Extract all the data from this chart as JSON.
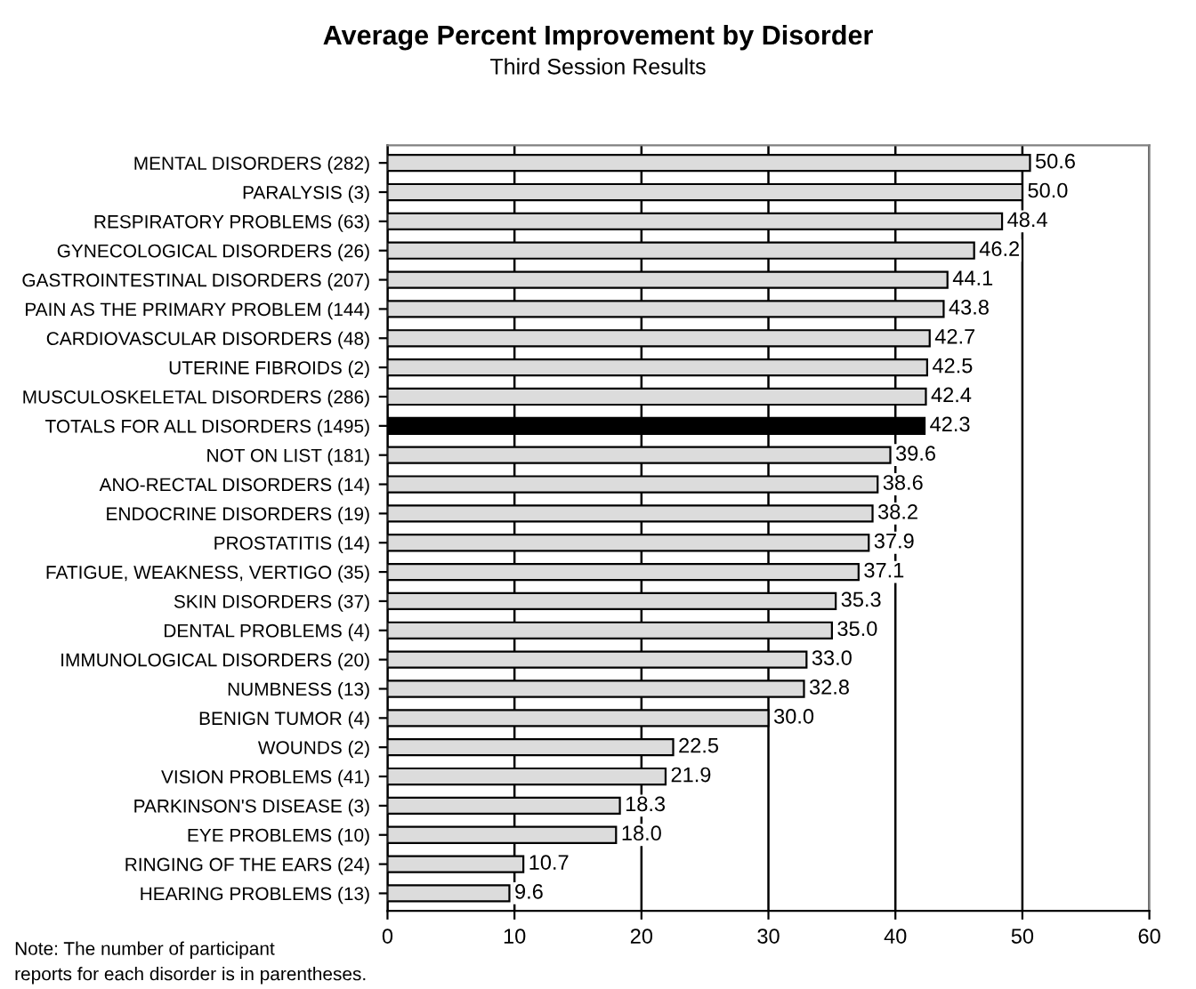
{
  "chart_data": {
    "type": "bar",
    "orientation": "horizontal",
    "title": "Average Percent Improvement by Disorder",
    "subtitle": "Third Session Results",
    "categories": [
      "MENTAL DISORDERS (282)",
      "PARALYSIS (3)",
      "RESPIRATORY PROBLEMS (63)",
      "GYNECOLOGICAL DISORDERS (26)",
      "GASTROINTESTINAL DISORDERS (207)",
      "PAIN AS THE PRIMARY PROBLEM (144)",
      "CARDIOVASCULAR DISORDERS (48)",
      "UTERINE FIBROIDS (2)",
      "MUSCULOSKELETAL DISORDERS (286)",
      "TOTALS FOR ALL DISORDERS (1495)",
      "NOT ON LIST (181)",
      "ANO-RECTAL DISORDERS (14)",
      "ENDOCRINE DISORDERS (19)",
      "PROSTATITIS (14)",
      "FATIGUE, WEAKNESS, VERTIGO (35)",
      "SKIN DISORDERS (37)",
      "DENTAL PROBLEMS (4)",
      "IMMUNOLOGICAL DISORDERS (20)",
      "NUMBNESS (13)",
      "BENIGN TUMOR (4)",
      "WOUNDS (2)",
      "VISION PROBLEMS (41)",
      "PARKINSON'S DISEASE (3)",
      "EYE PROBLEMS (10)",
      "RINGING OF THE EARS (24)",
      "HEARING PROBLEMS (13)"
    ],
    "values": [
      50.6,
      50.0,
      48.4,
      46.2,
      44.1,
      43.8,
      42.7,
      42.5,
      42.4,
      42.3,
      39.6,
      38.6,
      38.2,
      37.9,
      37.1,
      35.3,
      35.0,
      33.0,
      32.8,
      30.0,
      22.5,
      21.9,
      18.3,
      18.0,
      10.7,
      9.6
    ],
    "value_labels": [
      "50.6",
      "50.0",
      "48.4",
      "46.2",
      "44.1",
      "43.8",
      "42.7",
      "42.5",
      "42.4",
      "42.3",
      "39.6",
      "38.6",
      "38.2",
      "37.9",
      "37.1",
      "35.3",
      "35.0",
      "33.0",
      "32.8",
      "30.0",
      "22.5",
      "21.9",
      "18.3",
      "18.0",
      "10.7",
      "9.6"
    ],
    "colors": [
      "#dcdcdc",
      "#dcdcdc",
      "#dcdcdc",
      "#dcdcdc",
      "#dcdcdc",
      "#dcdcdc",
      "#dcdcdc",
      "#dcdcdc",
      "#dcdcdc",
      "#000000",
      "#dcdcdc",
      "#dcdcdc",
      "#dcdcdc",
      "#dcdcdc",
      "#dcdcdc",
      "#dcdcdc",
      "#dcdcdc",
      "#dcdcdc",
      "#dcdcdc",
      "#dcdcdc",
      "#dcdcdc",
      "#dcdcdc",
      "#dcdcdc",
      "#dcdcdc",
      "#dcdcdc",
      "#dcdcdc"
    ],
    "xlim": [
      0,
      60
    ],
    "xticks": [
      0,
      10,
      20,
      30,
      40,
      50,
      60
    ],
    "grid": "x",
    "legend": false,
    "annotations": [
      "Note: The number of participant\nreports for each disorder is in parentheses."
    ]
  }
}
